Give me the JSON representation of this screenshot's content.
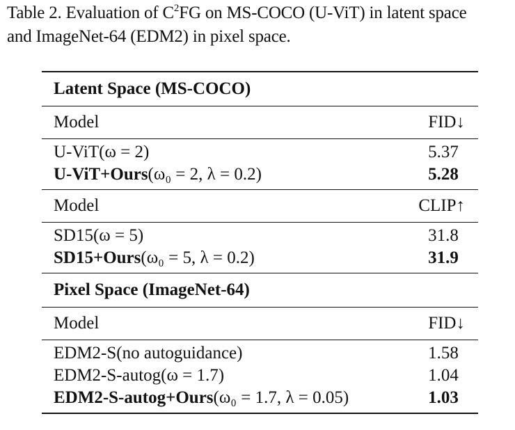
{
  "caption": {
    "prefix": "Table 2. Evaluation of C",
    "sup": "2",
    "rest": "FG on MS-COCO (U-ViT) in latent space",
    "line2": "and ImageNet-64 (EDM2) in pixel space."
  },
  "table": {
    "latent": {
      "title": "Latent Space (MS-COCO)",
      "fid_header": {
        "model": "Model",
        "metric": "FID↓"
      },
      "fid_rows": [
        {
          "model": "U-ViT",
          "args": "(ω = 2)",
          "value": "5.37"
        },
        {
          "model": "U-ViT+Ours",
          "args": "(ω₀ = 2, λ = 0.2)",
          "value": "5.28"
        }
      ],
      "clip_header": {
        "model": "Model",
        "metric": "CLIP↑"
      },
      "clip_rows": [
        {
          "model": "SD15",
          "args": "(ω = 5)",
          "value": "31.8"
        },
        {
          "model": "SD15+Ours",
          "args": "(ω₀ = 5, λ = 0.2)",
          "value": "31.9"
        }
      ]
    },
    "pixel": {
      "title": "Pixel Space (ImageNet-64)",
      "header": {
        "model": "Model",
        "metric": "FID↓"
      },
      "rows": [
        {
          "model": "EDM2-S(no autoguidance)",
          "args": "",
          "value": "1.58"
        },
        {
          "model": "EDM2-S-autog",
          "args": "(ω = 1.7)",
          "value": "1.04"
        },
        {
          "model": "EDM2-S-autog+Ours",
          "args": "(ω₀ = 1.7, λ = 0.05)",
          "value": "1.03"
        }
      ]
    }
  }
}
